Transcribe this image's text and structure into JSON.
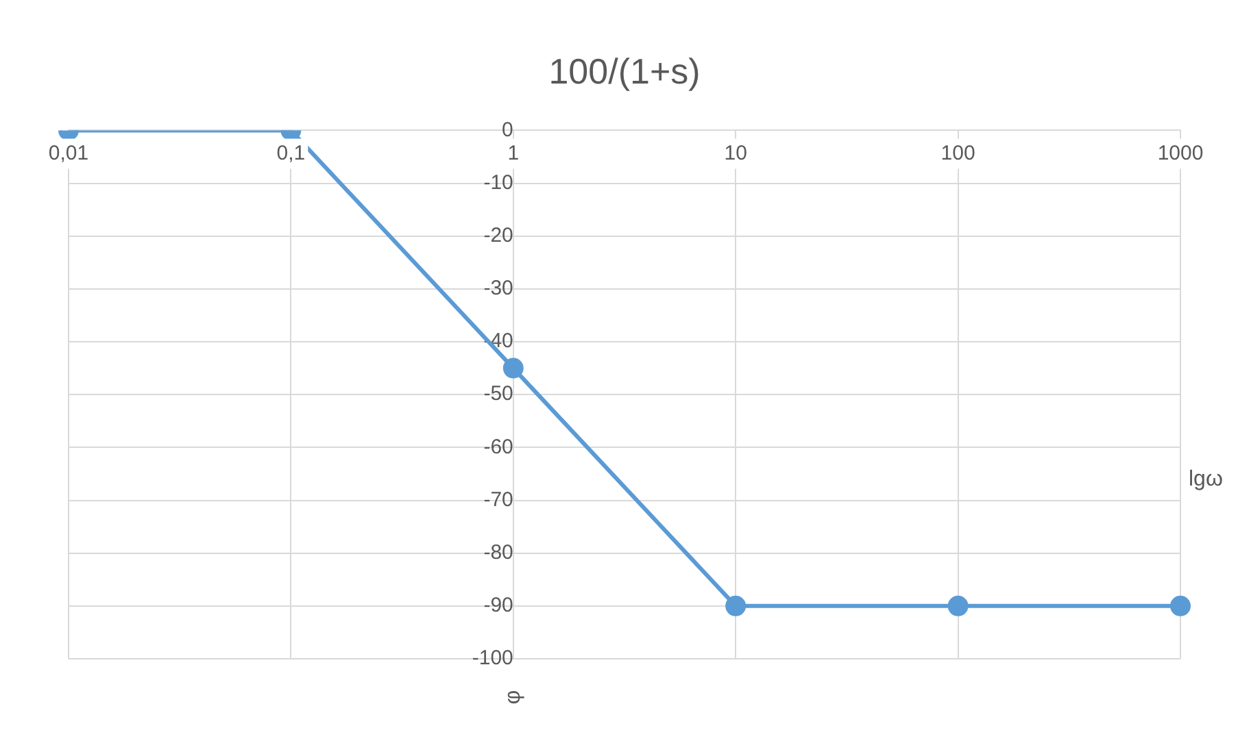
{
  "chart_data": {
    "type": "line",
    "title": "100/(1+s)",
    "xlabel": "lgω",
    "ylabel": "φ",
    "categories": [
      "0,01",
      "0,1",
      "1",
      "10",
      "100",
      "1000"
    ],
    "series": [
      {
        "color": "#5b9bd5",
        "values": [
          0,
          0,
          -45,
          -90,
          -90,
          -90
        ]
      }
    ],
    "ylim": [
      -100,
      0
    ],
    "yticks": [
      -100,
      -90,
      -80,
      -70,
      -60,
      -50,
      -40,
      -30,
      -20,
      -10,
      0
    ],
    "grid": true,
    "legend": false,
    "marker": "circle",
    "line_style": "solid"
  }
}
